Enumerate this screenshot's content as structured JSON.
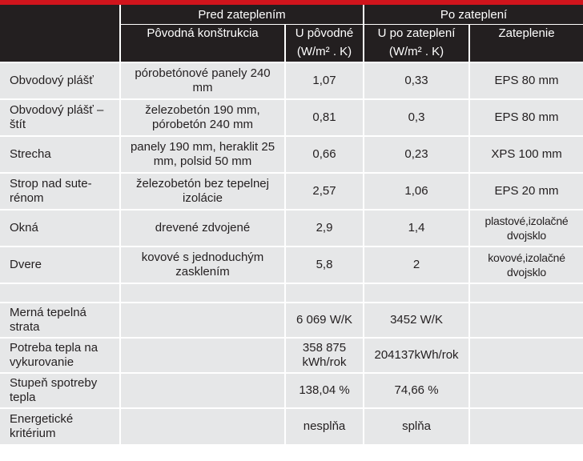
{
  "header": {
    "group_before": "Pred zateplením",
    "group_after": "Po zateplení",
    "col_original": "Pôvodná konštrukcia",
    "col_u_original": "U pôvodné",
    "col_u_after": "U po zateplení",
    "col_insulation": "Zateplenie",
    "unit_u_original": "(W/m² . K)",
    "unit_u_after": "(W/m² . K)"
  },
  "rows": [
    {
      "label": "Obvodový plášť",
      "construction": "pórobetónové panely 240 mm",
      "u_original": "1,07",
      "u_after": "0,33",
      "insulation": "EPS 80 mm"
    },
    {
      "label": "Obvodový plášť – štít",
      "construction": "železobetón 190 mm, pórobetón 240 mm",
      "u_original": "0,81",
      "u_after": "0,3",
      "insulation": "EPS 80 mm"
    },
    {
      "label": "Strecha",
      "construction": "panely 190 mm, heraklit 25 mm, polsid 50 mm",
      "u_original": "0,66",
      "u_after": "0,23",
      "insulation": "XPS 100 mm"
    },
    {
      "label": "Strop nad sute-rénom",
      "construction": "železobetón bez tepelnej izolácie",
      "u_original": "2,57",
      "u_after": "1,06",
      "insulation": "EPS 20 mm"
    },
    {
      "label": "Okná",
      "construction": "drevené zdvojené",
      "u_original": "2,9",
      "u_after": "1,4",
      "insulation": "plastové,izolačné dvojsklo"
    },
    {
      "label": "Dvere",
      "construction": "kovové s jednoduchým zasklením",
      "u_original": "5,8",
      "u_after": "2",
      "insulation": "kovové,izolačné dvojsklo"
    }
  ],
  "summary": [
    {
      "label": "Merná tepelná strata",
      "before": "6 069 W/K",
      "after": "3452 W/K"
    },
    {
      "label": "Potreba tepla na vykurovanie",
      "before": "358 875 kWh/rok",
      "after": "204137kWh/rok"
    },
    {
      "label": "Stupeň spotreby tepla",
      "before": "138,04 %",
      "after": "74,66 %"
    },
    {
      "label": "Energetické kritérium",
      "before": "nesplňa",
      "after": "splňa"
    }
  ],
  "colors": {
    "header_bg": "#231f20",
    "accent_red": "#d0141c",
    "cell_bg": "#e6e7e8"
  }
}
